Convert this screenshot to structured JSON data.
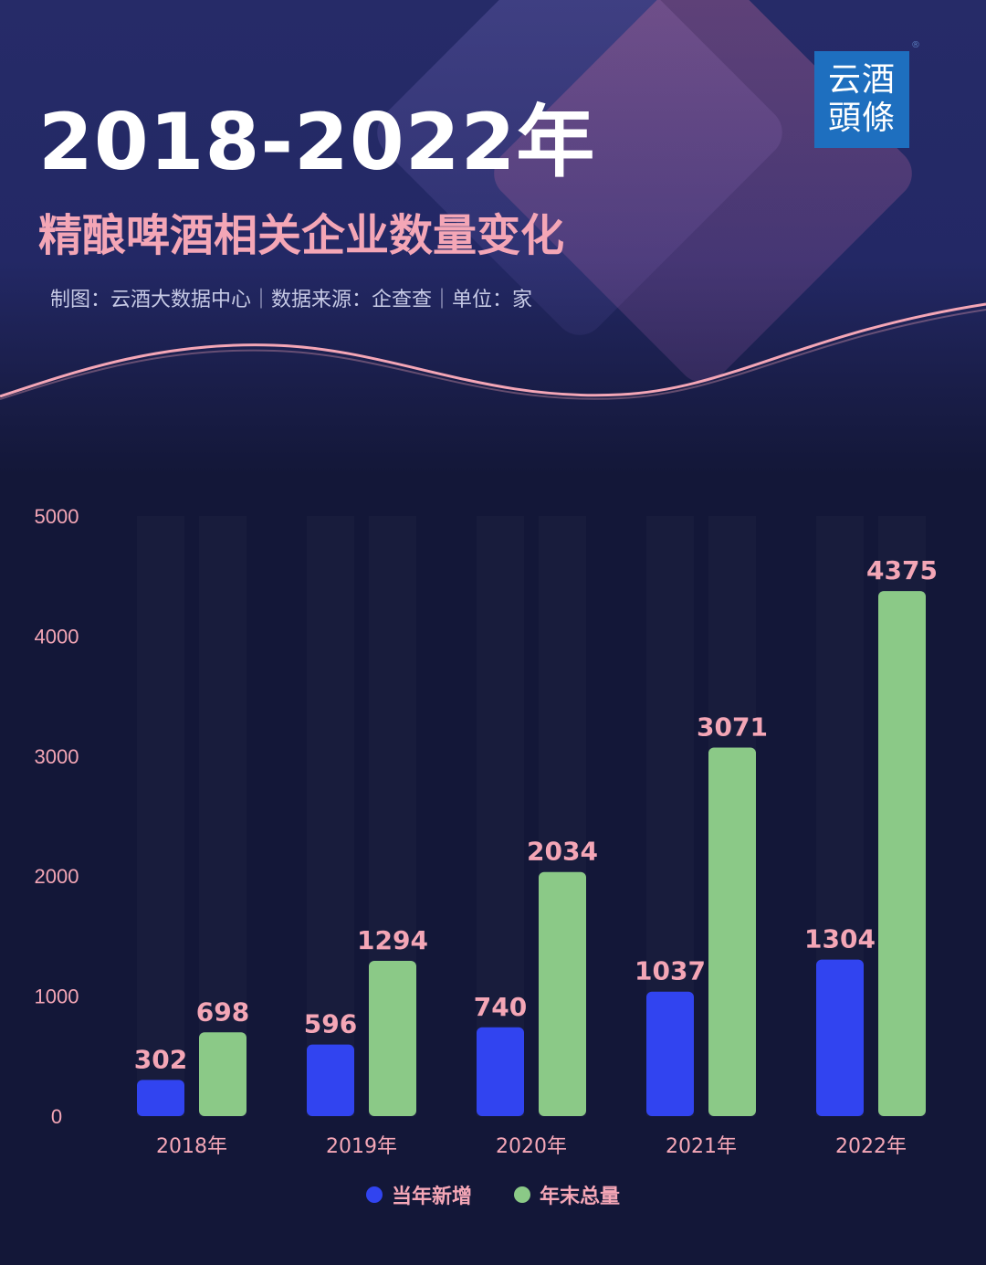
{
  "header": {
    "title": "2018-2022年",
    "subtitle": "精酿啤酒相关企业数量变化",
    "source": "制图：云酒大数据中心｜数据来源：企查查｜单位：家"
  },
  "logo": {
    "line1": "云酒",
    "line2": "頭條",
    "reg": "®"
  },
  "colors": {
    "new_bar": "#3144f0",
    "total_bar": "#8bc987",
    "label": "#f4a6b6",
    "title": "#ffffff"
  },
  "chart_data": {
    "type": "bar",
    "categories": [
      "2018年",
      "2019年",
      "2020年",
      "2021年",
      "2022年"
    ],
    "series": [
      {
        "name": "当年新增",
        "values": [
          302,
          596,
          740,
          1037,
          1304
        ],
        "color": "#3144f0"
      },
      {
        "name": "年末总量",
        "values": [
          698,
          1294,
          2034,
          3071,
          4375
        ],
        "color": "#8bc987"
      }
    ],
    "ylim": [
      0,
      5000
    ],
    "yticks": [
      0,
      1000,
      2000,
      3000,
      4000,
      5000
    ],
    "xlabel": "",
    "ylabel": "",
    "legend_position": "bottom",
    "grid": false,
    "data_labels": true
  },
  "legend": [
    {
      "label": "当年新增",
      "color": "#3144f0"
    },
    {
      "label": "年末总量",
      "color": "#8bc987"
    }
  ]
}
